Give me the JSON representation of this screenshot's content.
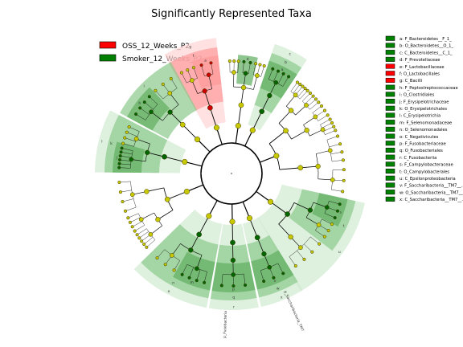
{
  "chart_data": {
    "type": "cladogram",
    "title": "Significantly Represented Taxa",
    "groups": [
      {
        "name": "OSS_12_Weeks_P2",
        "color": "#ff0000"
      },
      {
        "name": "Smoker_12_Weeks_P2",
        "color": "#008000"
      }
    ],
    "taxa": [
      {
        "key": "a",
        "label": "a: F_Bacteroidetes__F_1_",
        "group": "Smoker_12_Weeks_P2"
      },
      {
        "key": "b",
        "label": "b: O_Bacteroidetes__O_1_",
        "group": "Smoker_12_Weeks_P2"
      },
      {
        "key": "c",
        "label": "c: C_Bacteroidetes__C_1_",
        "group": "Smoker_12_Weeks_P2"
      },
      {
        "key": "d",
        "label": "d: F_Prevotellaceae",
        "group": "Smoker_12_Weeks_P2"
      },
      {
        "key": "e",
        "label": "e: F_Lactobacillaceae",
        "group": "OSS_12_Weeks_P2"
      },
      {
        "key": "f",
        "label": "f: O_Lactobacillales",
        "group": "OSS_12_Weeks_P2"
      },
      {
        "key": "g",
        "label": "g: C_Bacilli",
        "group": "OSS_12_Weeks_P2"
      },
      {
        "key": "h",
        "label": "h: F_Peptostreptococcaceae",
        "group": "Smoker_12_Weeks_P2"
      },
      {
        "key": "i",
        "label": "i: O_Clostridiales",
        "group": "Smoker_12_Weeks_P2"
      },
      {
        "key": "j",
        "label": "j: F_Erysipelotrichaceae",
        "group": "Smoker_12_Weeks_P2"
      },
      {
        "key": "k",
        "label": "k: O_Erysipelotrichales",
        "group": "Smoker_12_Weeks_P2"
      },
      {
        "key": "l",
        "label": "l: C_Erysipelotrichia",
        "group": "Smoker_12_Weeks_P2"
      },
      {
        "key": "m",
        "label": "m: F_Selenomonadaceae",
        "group": "Smoker_12_Weeks_P2"
      },
      {
        "key": "n",
        "label": "n: O_Selenomonadales",
        "group": "Smoker_12_Weeks_P2"
      },
      {
        "key": "o",
        "label": "o: C_Negativicutes",
        "group": "Smoker_12_Weeks_P2"
      },
      {
        "key": "p",
        "label": "p: F_Fusobacteriaceae",
        "group": "Smoker_12_Weeks_P2"
      },
      {
        "key": "q",
        "label": "q: O_Fusobacteriales",
        "group": "Smoker_12_Weeks_P2"
      },
      {
        "key": "r",
        "label": "r: C_Fusobacteriia",
        "group": "Smoker_12_Weeks_P2"
      },
      {
        "key": "s",
        "label": "s: F_Campylobacteraceae",
        "group": "Smoker_12_Weeks_P2"
      },
      {
        "key": "t",
        "label": "t: O_Campylobacterales",
        "group": "Smoker_12_Weeks_P2"
      },
      {
        "key": "u",
        "label": "u: C_Epsilonproteobacteria",
        "group": "Smoker_12_Weeks_P2"
      },
      {
        "key": "v",
        "label": "v: F_Saccharibacteria__TM7__...",
        "group": "Smoker_12_Weeks_P2"
      },
      {
        "key": "w",
        "label": "w: O_Saccharibacteria__TM7__...",
        "group": "Smoker_12_Weeks_P2"
      },
      {
        "key": "x",
        "label": "x: C_Saccharibacteria__TM7__...",
        "group": "Smoker_12_Weeks_P2"
      }
    ],
    "outer_text": [
      "p_Saccharibacteria_TM7",
      "p_Fusobacteria"
    ],
    "legend_position": "top-left",
    "taxa_legend_position": "right"
  },
  "colors": {
    "node_default": "#c8c800",
    "node_stroke": "#6f6f00",
    "node_smoker": "#006400",
    "node_oss": "#cc0000",
    "shade_green_light": "#d0ead0",
    "shade_green_mid": "#8bc98b",
    "shade_green_dark": "#5fae5f",
    "shade_red_light": "#ffd4d4",
    "shade_red_mid": "#ff9a9a"
  }
}
